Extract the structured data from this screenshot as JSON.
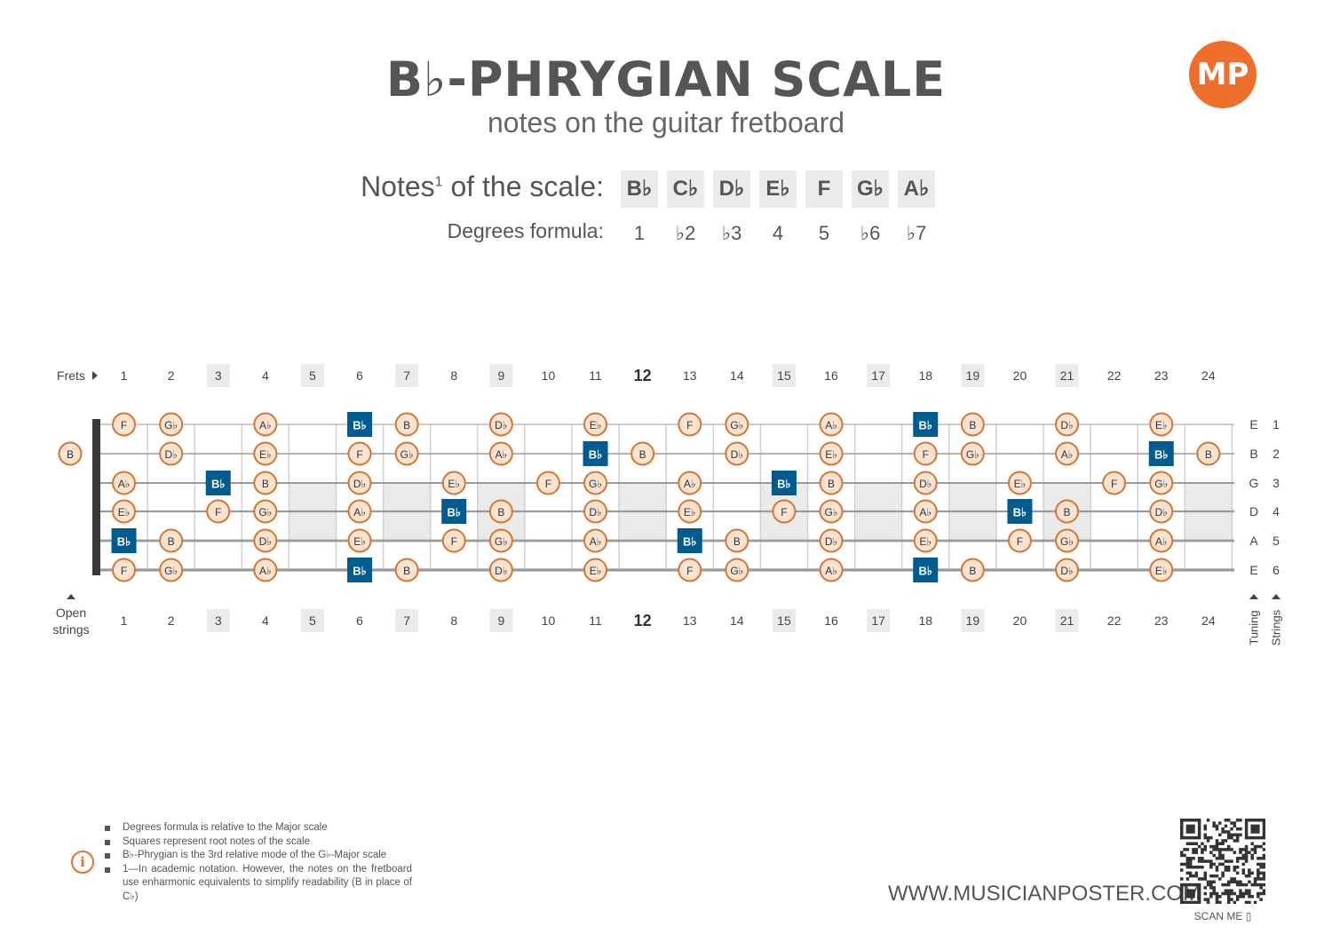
{
  "header": {
    "title": "B♭-PHRYGIAN SCALE",
    "subtitle": "notes on the guitar fretboard",
    "logo_text": "MP",
    "logo_color": "#ee6e2c"
  },
  "scale": {
    "notes_label": "Notes",
    "notes_label_sup": "1",
    "notes_label_rest": " of the scale:",
    "degrees_label": "Degrees formula:",
    "notes": [
      "B♭",
      "C♭",
      "D♭",
      "E♭",
      "F",
      "G♭",
      "A♭"
    ],
    "degrees": [
      "1",
      "♭2",
      "♭3",
      "4",
      "5",
      "♭6",
      "♭7"
    ]
  },
  "fretboard": {
    "frets_label": "Frets",
    "open_strings_label": [
      "Open",
      "strings"
    ],
    "tuning_label": "Tuning",
    "strings_label": "Strings",
    "fret_numbers": [
      "1",
      "2",
      "3",
      "4",
      "5",
      "6",
      "7",
      "8",
      "9",
      "10",
      "11",
      "12",
      "13",
      "14",
      "15",
      "16",
      "17",
      "18",
      "19",
      "20",
      "21",
      "22",
      "23",
      "24"
    ],
    "highlighted_frets": [
      3,
      5,
      7,
      9,
      15,
      17,
      19,
      21
    ],
    "bold_fret": 12,
    "string_tuning": [
      "E",
      "B",
      "G",
      "D",
      "A",
      "E"
    ],
    "string_numbers": [
      "1",
      "2",
      "3",
      "4",
      "5",
      "6"
    ],
    "root_color": "#005b8f",
    "note_fill": "#fbe3d2",
    "note_stroke": "#d9742f",
    "open_notes": [
      null,
      "B",
      null,
      null,
      null,
      null
    ],
    "strings": [
      [
        "F",
        "G♭",
        "",
        "A♭",
        "",
        "B♭",
        "B",
        "",
        "D♭",
        "",
        "E♭",
        "",
        "F",
        "G♭",
        "",
        "A♭",
        "",
        "B♭",
        "B",
        "",
        "D♭",
        "",
        "E♭",
        ""
      ],
      [
        "",
        "D♭",
        "",
        "E♭",
        "",
        "F",
        "G♭",
        "",
        "A♭",
        "",
        "B♭",
        "B",
        "",
        "D♭",
        "",
        "E♭",
        "",
        "F",
        "G♭",
        "",
        "A♭",
        "",
        "B♭",
        "B"
      ],
      [
        "A♭",
        "",
        "B♭",
        "B",
        "",
        "D♭",
        "",
        "E♭",
        "",
        "F",
        "G♭",
        "",
        "A♭",
        "",
        "B♭",
        "B",
        "",
        "D♭",
        "",
        "E♭",
        "",
        "F",
        "G♭",
        ""
      ],
      [
        "E♭",
        "",
        "F",
        "G♭",
        "",
        "A♭",
        "",
        "B♭",
        "B",
        "",
        "D♭",
        "",
        "E♭",
        "",
        "F",
        "G♭",
        "",
        "A♭",
        "",
        "B♭",
        "B",
        "",
        "D♭",
        ""
      ],
      [
        "B♭",
        "B",
        "",
        "D♭",
        "",
        "E♭",
        "",
        "F",
        "G♭",
        "",
        "A♭",
        "",
        "B♭",
        "B",
        "",
        "D♭",
        "",
        "E♭",
        "",
        "F",
        "G♭",
        "",
        "A♭",
        ""
      ],
      [
        "F",
        "G♭",
        "",
        "A♭",
        "",
        "B♭",
        "B",
        "",
        "D♭",
        "",
        "E♭",
        "",
        "F",
        "G♭",
        "",
        "A♭",
        "",
        "B♭",
        "B",
        "",
        "D♭",
        "",
        "E♭",
        ""
      ]
    ]
  },
  "footer": {
    "notes": [
      "Degrees formula is relative to the Major scale",
      "Squares represent root notes of the scale",
      "B♭-Phrygian is the 3rd relative mode of the G♭-Major scale",
      "1—In academic notation. However, the notes on the fretboard use enharmonic equivalents to simplify readability (B in place of C♭)"
    ],
    "website": "WWW.MUSICIANPOSTER.COM",
    "scan_me": "SCAN ME"
  }
}
